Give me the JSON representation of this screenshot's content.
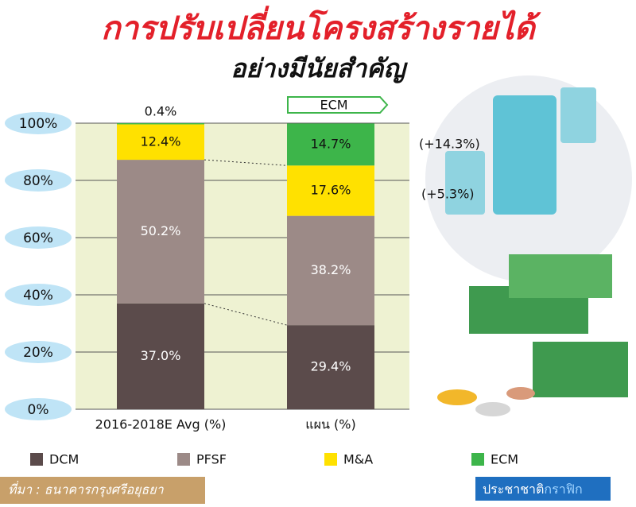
{
  "chart_data": {
    "type": "stacked_bar",
    "title": "การปรับเปลี่ยนโครงสร้างรายได้",
    "subtitle": "อย่างมีนัยสำคัญ",
    "categories": [
      "2016-2018E Avg (%)",
      "แผน (%)"
    ],
    "series": [
      {
        "name": "DCM",
        "color": "#5b4b4b",
        "values": [
          37.0,
          29.4
        ],
        "value_labels": [
          "37.0%",
          "29.4%"
        ]
      },
      {
        "name": "PFSF",
        "color": "#9c8a87",
        "values": [
          50.2,
          38.2
        ],
        "value_labels": [
          "50.2%",
          "38.2%"
        ]
      },
      {
        "name": "M&A",
        "color": "#ffe100",
        "values": [
          12.4,
          17.6
        ],
        "value_labels": [
          "12.4%",
          "17.6%"
        ]
      },
      {
        "name": "ECM",
        "color": "#3db54a",
        "values": [
          0.4,
          14.7
        ],
        "value_labels": [
          "0.4%",
          "14.7%"
        ]
      }
    ],
    "ylim": [
      0,
      100
    ],
    "yticks": [
      {
        "value": 0,
        "label": "0%"
      },
      {
        "value": 20,
        "label": "20%"
      },
      {
        "value": 40,
        "label": "40%"
      },
      {
        "value": 60,
        "label": "60%"
      },
      {
        "value": 80,
        "label": "80%"
      },
      {
        "value": 100,
        "label": "100%"
      }
    ],
    "grid": true,
    "annotations": [
      "ECM",
      "(+14.3%)",
      "(+5.3%)"
    ],
    "source": "ที่มา : ธนาคารกรุงศรีอยุธยา",
    "brand": [
      "ประชาชาติ",
      "กราฟิก"
    ]
  }
}
